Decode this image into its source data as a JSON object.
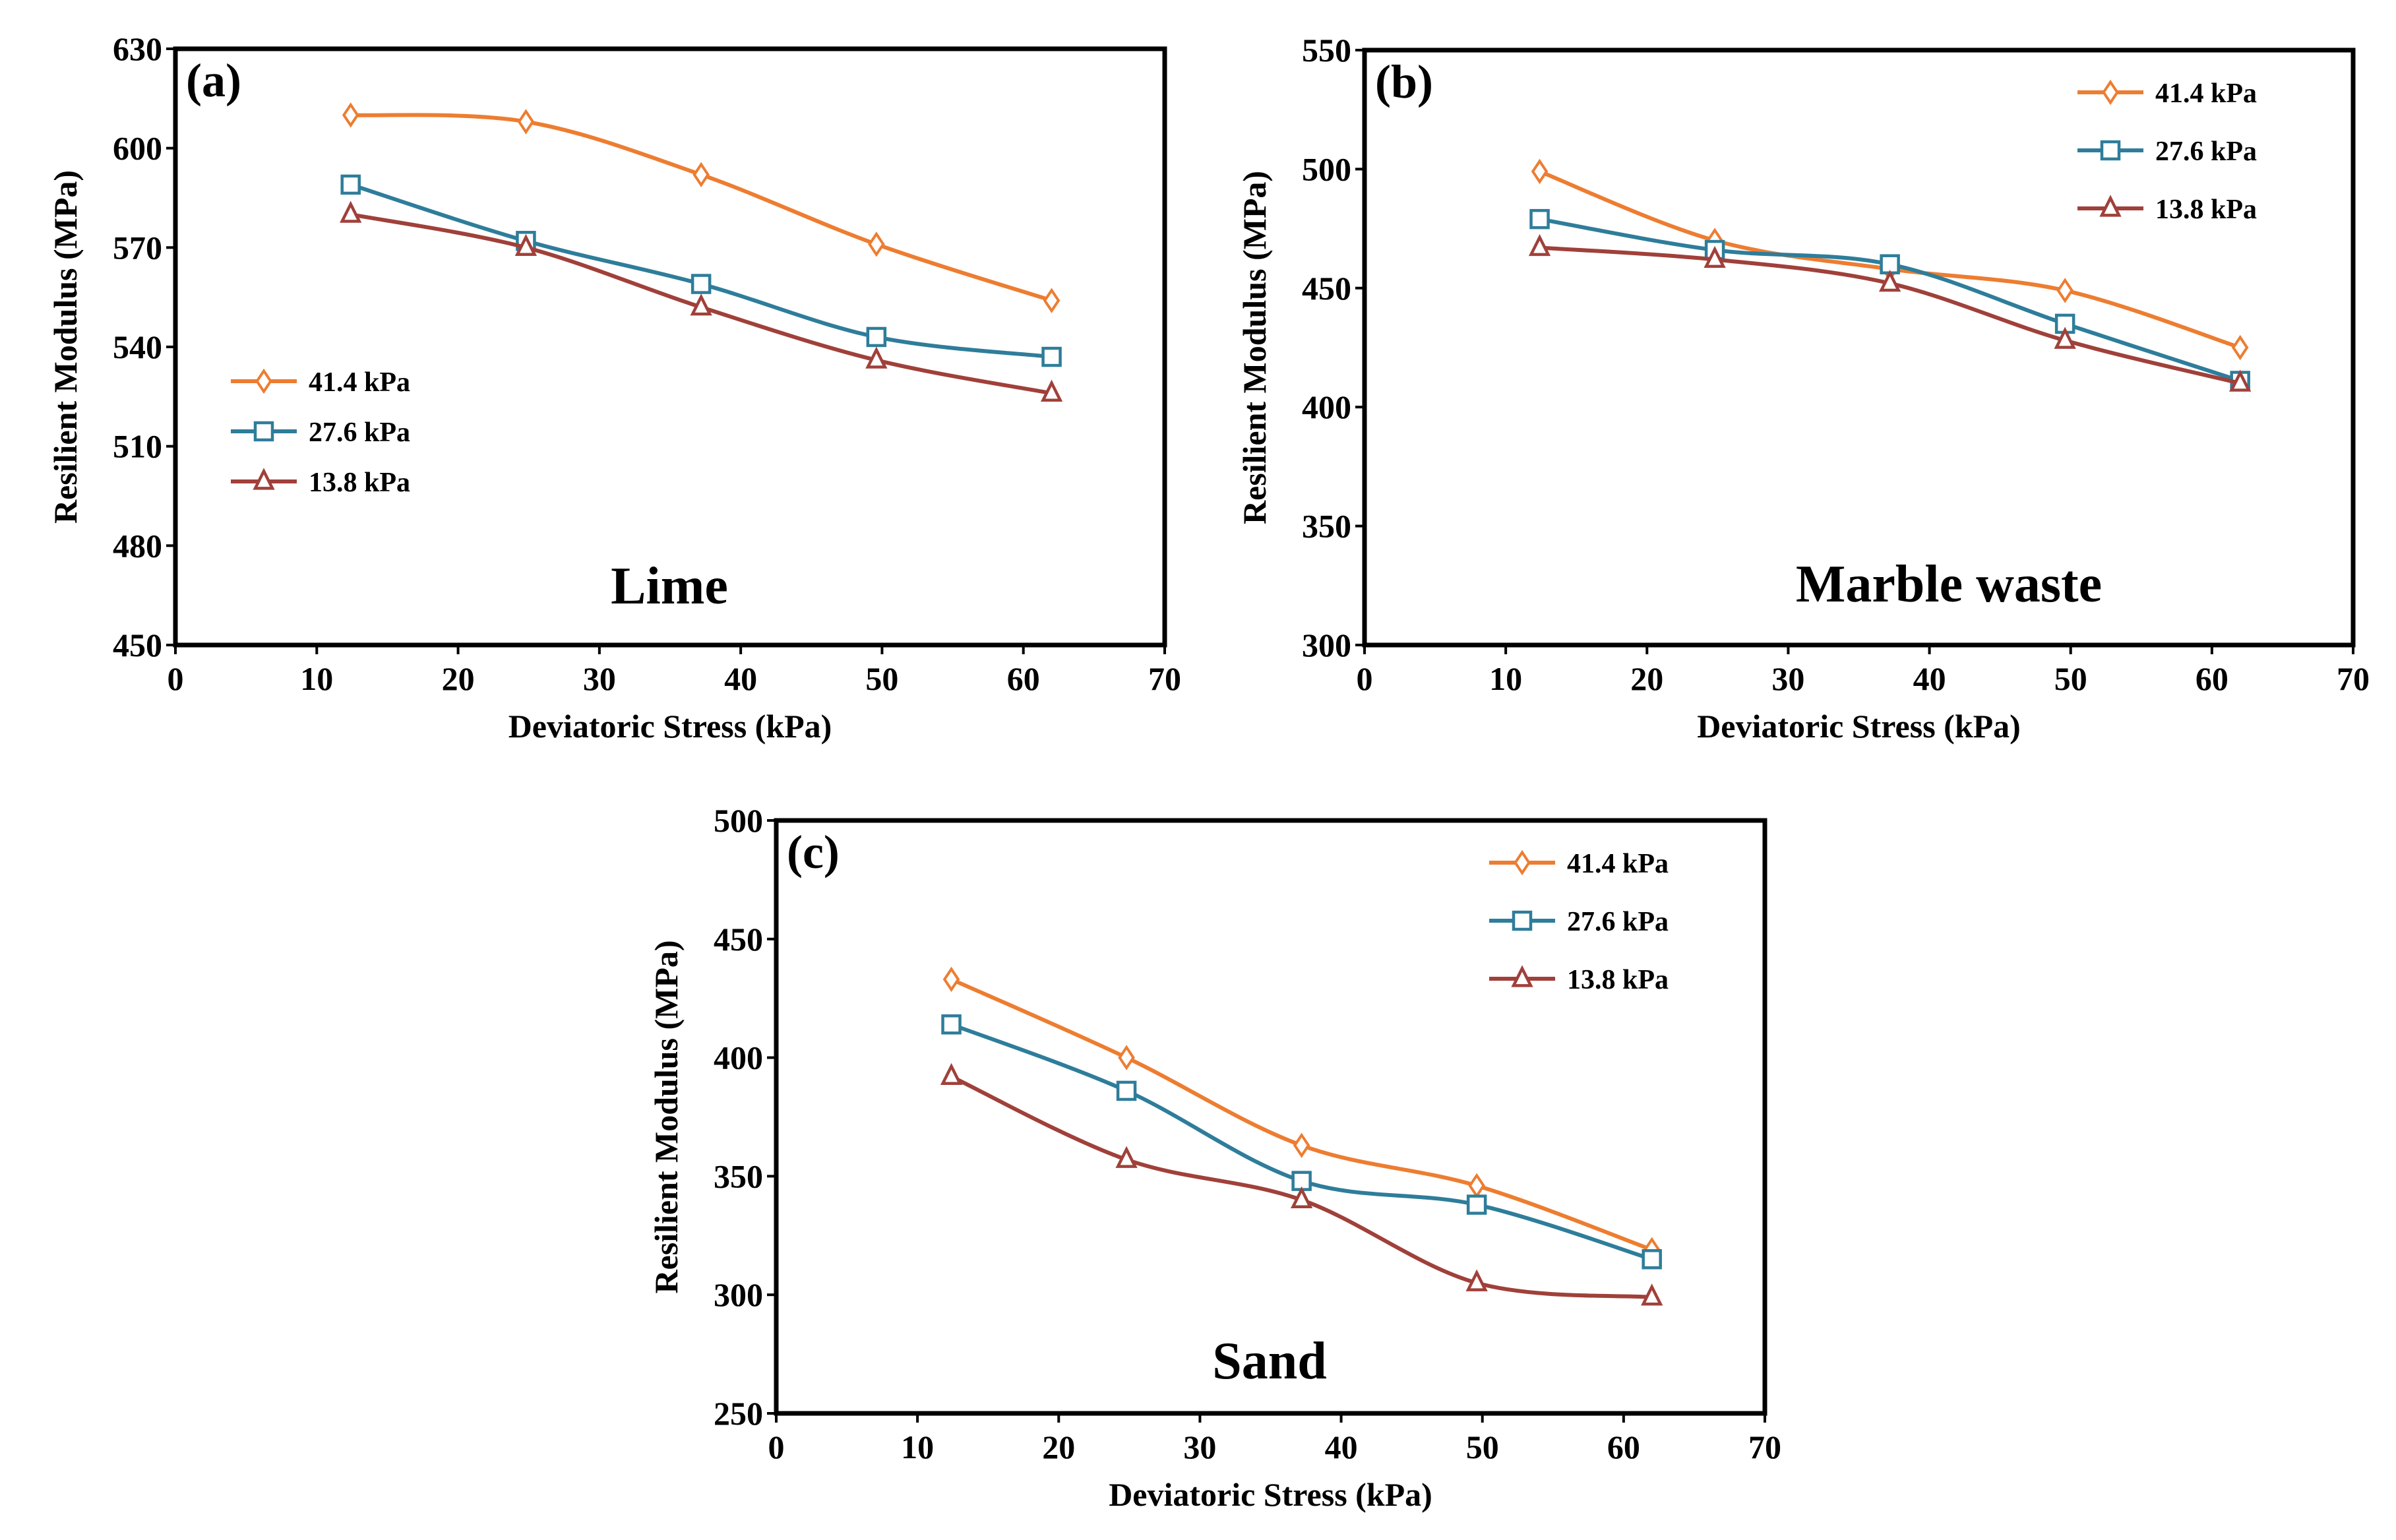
{
  "chart_data": [
    {
      "type": "line",
      "panel_label": "(a)",
      "title": "Lime",
      "xlabel": "Deviatoric Stress (kPa)",
      "ylabel": "Resilient Modulus (MPa)",
      "xlim": [
        0,
        70
      ],
      "ylim": [
        450,
        630
      ],
      "xticks": [
        0,
        10,
        20,
        30,
        40,
        50,
        60,
        70
      ],
      "yticks": [
        450,
        480,
        510,
        540,
        570,
        600,
        630
      ],
      "grid": false,
      "legend_placement": "middle-left",
      "x": [
        12.4,
        24.8,
        37.2,
        49.6,
        62
      ],
      "series": [
        {
          "name": "41.4 kPa",
          "marker": "diamond",
          "color": "#ED7D31",
          "values": [
            610,
            608,
            592,
            571,
            554
          ]
        },
        {
          "name": "27.6 kPa",
          "marker": "square",
          "color": "#2E7D9A",
          "values": [
            589,
            572,
            559,
            543,
            537
          ]
        },
        {
          "name": "13.8 kPa",
          "marker": "triangle",
          "color": "#A0403A",
          "values": [
            580,
            570,
            552,
            536,
            526
          ]
        }
      ]
    },
    {
      "type": "line",
      "panel_label": "(b)",
      "title": "Marble waste",
      "xlabel": "Deviatoric Stress (kPa)",
      "ylabel": "Resilient Modulus (MPa)",
      "xlim": [
        0,
        70
      ],
      "ylim": [
        300,
        550
      ],
      "xticks": [
        0,
        10,
        20,
        30,
        40,
        50,
        60,
        70
      ],
      "yticks": [
        300,
        350,
        400,
        450,
        500,
        550
      ],
      "grid": false,
      "legend_placement": "top-right",
      "x": [
        12.4,
        24.8,
        37.2,
        49.6,
        62
      ],
      "series": [
        {
          "name": "41.4 kPa",
          "marker": "diamond",
          "color": "#ED7D31",
          "values": [
            499,
            470,
            458,
            449,
            425
          ]
        },
        {
          "name": "27.6 kPa",
          "marker": "square",
          "color": "#2E7D9A",
          "values": [
            479,
            466,
            460,
            435,
            411
          ]
        },
        {
          "name": "13.8 kPa",
          "marker": "triangle",
          "color": "#A0403A",
          "values": [
            467,
            462,
            452,
            428,
            410
          ]
        }
      ]
    },
    {
      "type": "line",
      "panel_label": "(c)",
      "title": "Sand",
      "xlabel": "Deviatoric Stress (kPa)",
      "ylabel": "Resilient Modulus (MPa)",
      "xlim": [
        0,
        70
      ],
      "ylim": [
        250,
        500
      ],
      "xticks": [
        0,
        10,
        20,
        30,
        40,
        50,
        60,
        70
      ],
      "yticks": [
        250,
        300,
        350,
        400,
        450,
        500
      ],
      "grid": false,
      "legend_placement": "top-right",
      "x": [
        12.4,
        24.8,
        37.2,
        49.6,
        62
      ],
      "series": [
        {
          "name": "41.4 kPa",
          "marker": "diamond",
          "color": "#ED7D31",
          "values": [
            433,
            400,
            363,
            346,
            319
          ]
        },
        {
          "name": "27.6 kPa",
          "marker": "square",
          "color": "#2E7D9A",
          "values": [
            414,
            386,
            348,
            338,
            315
          ]
        },
        {
          "name": "13.8 kPa",
          "marker": "triangle",
          "color": "#A0403A",
          "values": [
            392,
            357,
            340,
            305,
            299
          ]
        }
      ]
    }
  ]
}
